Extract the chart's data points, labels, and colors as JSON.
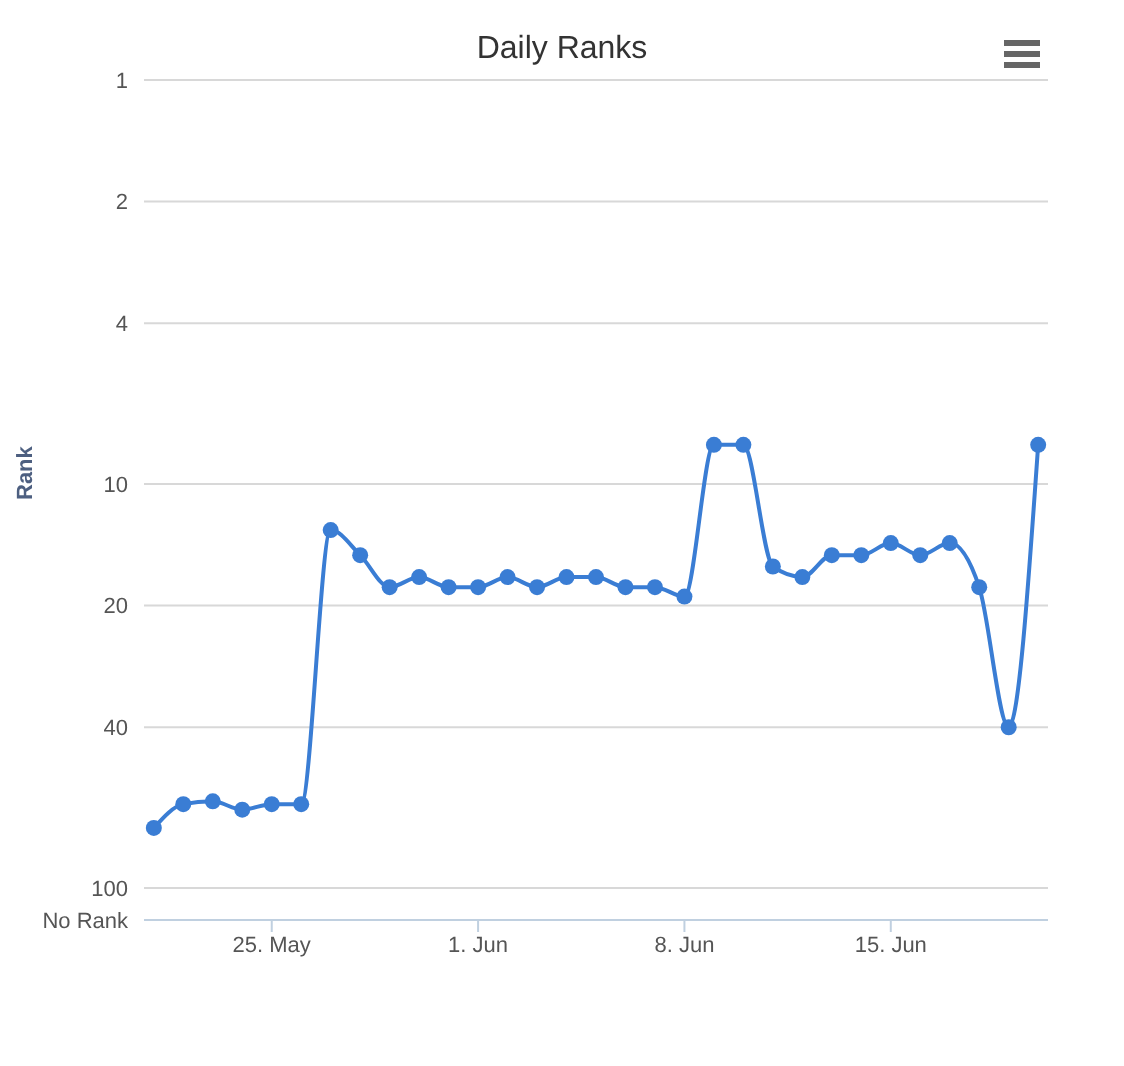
{
  "chart_data": {
    "type": "line",
    "title": "Daily Ranks",
    "ylabel": "Rank",
    "x": [
      "--05-21",
      "--05-22",
      "--05-23",
      "--05-24",
      "--05-25",
      "--05-26",
      "--05-27",
      "--05-28",
      "--05-29",
      "--05-30",
      "--05-31",
      "--06-01",
      "--06-02",
      "--06-03",
      "--06-04",
      "--06-05",
      "--06-06",
      "--06-07",
      "--06-08",
      "--06-09",
      "--06-10",
      "--06-11",
      "--06-12",
      "--06-13",
      "--06-14",
      "--06-15",
      "--06-16",
      "--06-17",
      "--06-18",
      "--06-19",
      "--06-20"
    ],
    "series": [
      {
        "color": "#3a7dd4",
        "values": [
          71,
          62,
          61,
          64,
          62,
          62,
          13,
          15,
          18,
          17,
          18,
          18,
          17,
          18,
          17,
          17,
          18,
          18,
          19,
          8,
          8,
          16,
          17,
          15,
          15,
          14,
          15,
          14,
          18,
          40,
          8
        ]
      }
    ],
    "xlim": [
      "--05-20T16:00",
      "--06-20T08:00"
    ],
    "xticks": [
      {
        "value": "--05-25",
        "label": "25. May"
      },
      {
        "value": "--06-01",
        "label": "1. Jun"
      },
      {
        "value": "--06-08",
        "label": "8. Jun"
      },
      {
        "value": "--06-15",
        "label": "15. Jun"
      }
    ],
    "ylim": [
      120,
      1
    ],
    "yticks": [
      1,
      2,
      4,
      10,
      20,
      40,
      100,
      {
        "value": 120,
        "label": "No Rank"
      }
    ],
    "log": true,
    "grid": "y",
    "marker": "circle",
    "line_style": "solid"
  }
}
